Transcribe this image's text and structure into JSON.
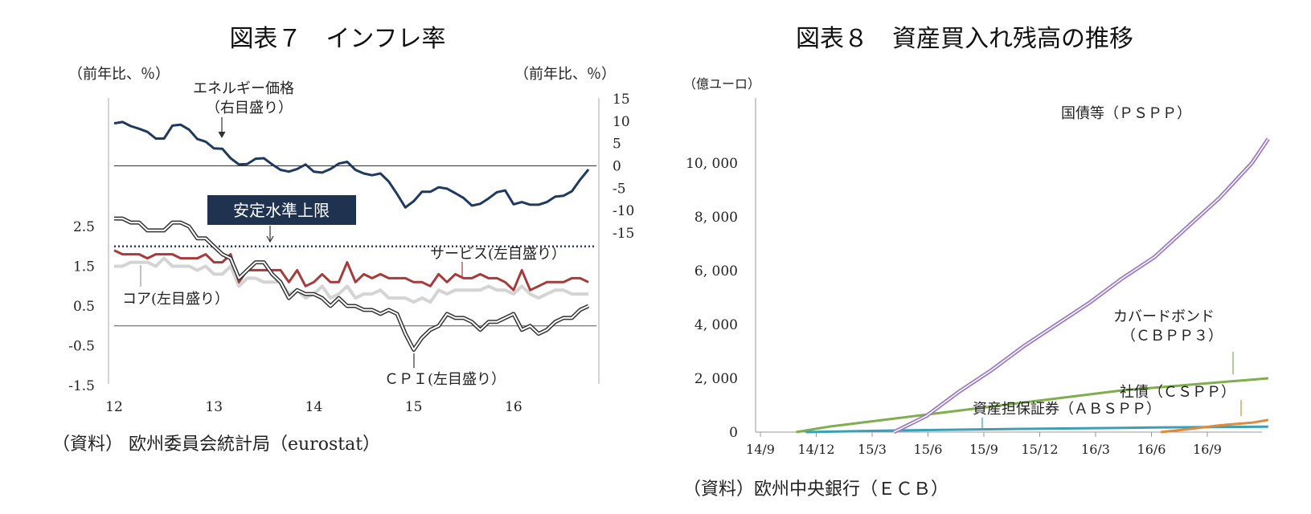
{
  "chart_data": [
    {
      "type": "line",
      "title": "図表７　インフレ率",
      "unit_left": "（前年比、％）",
      "unit_right": "（前年比、％）",
      "source": "（資料） 欧州委員会統計局（eurostat）",
      "x_labels": [
        "12",
        "13",
        "14",
        "15",
        "16"
      ],
      "x_range": [
        2012.0,
        2016.83
      ],
      "y_left_ticks": [
        "2.5",
        "1.5",
        "0.5",
        "-0.5",
        "-1.5"
      ],
      "y_left_range": [
        -1.5,
        3.5
      ],
      "y_right_ticks": [
        "15",
        "10",
        "5",
        "0",
        "-5",
        "-10",
        "-15"
      ],
      "y_right_range": [
        -15,
        15
      ],
      "stability_label": "安定水準上限",
      "stability_value": 2.0,
      "annotations": {
        "energy": "エネルギー価格",
        "energy_sub": "（右目盛り）",
        "services": "サービス(左目盛り）",
        "core": "コア(左目盛り）",
        "cpi": "ＣＰＩ(左目盛り）"
      },
      "colors": {
        "energy": "#1f3a5f",
        "services": "#a83a3a",
        "core": "#d4d4d4",
        "cpi": "#333333",
        "stability": "#2b3a67"
      },
      "series": [
        {
          "key": "energy",
          "axis": "right",
          "x_start": 2012.0,
          "values": [
            9.5,
            9.8,
            8.9,
            8.3,
            7.6,
            6.1,
            6.1,
            9,
            9.2,
            8.1,
            6,
            5.4,
            3.9,
            3.8,
            1.7,
            0.3,
            0.4,
            1.6,
            1.7,
            0.3,
            -0.9,
            -1.3,
            -0.7,
            0.3,
            -1.3,
            -1.5,
            -0.7,
            0.5,
            0.9,
            -0.9,
            -1.7,
            -2.1,
            -1.7,
            -3.5,
            -6.3,
            -9.3,
            -7.9,
            -5.8,
            -5.8,
            -4.8,
            -5.1,
            -6.1,
            -7.2,
            -8.9,
            -8.5,
            -7.3,
            -5.9,
            -5.5,
            -8.6,
            -8.1,
            -8.7,
            -8.7,
            -8.1,
            -6.9,
            -6.7,
            -5.7,
            -3.1,
            -0.8
          ]
        },
        {
          "key": "services",
          "axis": "left",
          "x_start": 2012.0,
          "values": [
            1.9,
            1.8,
            1.8,
            1.8,
            1.7,
            1.8,
            1.8,
            1.8,
            1.7,
            1.7,
            1.7,
            1.8,
            1.6,
            1.6,
            1.8,
            1.1,
            1.4,
            1.4,
            1.4,
            1.4,
            1.4,
            1.1,
            1.4,
            1.0,
            1.1,
            1.3,
            1.1,
            1.1,
            1.6,
            1.1,
            1.3,
            1.2,
            1.3,
            1.2,
            1.2,
            1.2,
            1.1,
            1.1,
            1.0,
            1.3,
            1.1,
            1.3,
            1.2,
            1.2,
            1.3,
            1.2,
            1.2,
            1.1,
            0.9,
            1.4,
            0.9,
            1.0,
            1.1,
            1.1,
            1.1,
            1.2,
            1.2,
            1.1
          ]
        },
        {
          "key": "core",
          "axis": "left",
          "x_start": 2012.0,
          "values": [
            1.5,
            1.5,
            1.6,
            1.6,
            1.6,
            1.5,
            1.7,
            1.5,
            1.5,
            1.5,
            1.4,
            1.5,
            1.3,
            1.3,
            1.5,
            1.0,
            1.2,
            1.2,
            1.1,
            1.1,
            1.1,
            0.8,
            0.9,
            0.7,
            0.8,
            1.0,
            0.7,
            0.8,
            1.0,
            0.7,
            0.8,
            0.8,
            0.9,
            0.7,
            0.7,
            0.7,
            0.6,
            0.7,
            0.6,
            0.9,
            0.8,
            0.9,
            0.9,
            0.9,
            0.9,
            1.0,
            0.9,
            0.9,
            0.8,
            1.0,
            0.8,
            0.7,
            0.8,
            0.9,
            0.9,
            0.8,
            0.8,
            0.8
          ]
        },
        {
          "key": "cpi",
          "axis": "left",
          "x_start": 2012.0,
          "values": [
            2.7,
            2.7,
            2.6,
            2.6,
            2.4,
            2.4,
            2.4,
            2.6,
            2.6,
            2.5,
            2.2,
            2.2,
            2.0,
            1.8,
            1.7,
            1.2,
            1.4,
            1.6,
            1.6,
            1.3,
            1.1,
            0.7,
            0.9,
            0.8,
            0.8,
            0.7,
            0.5,
            0.7,
            0.5,
            0.5,
            0.4,
            0.4,
            0.3,
            0.4,
            0.3,
            -0.2,
            -0.6,
            -0.3,
            -0.1,
            0.0,
            0.3,
            0.2,
            0.2,
            0.1,
            -0.1,
            0.1,
            0.1,
            0.2,
            0.3,
            -0.1,
            0.0,
            -0.2,
            -0.1,
            0.1,
            0.2,
            0.2,
            0.4,
            0.5
          ]
        }
      ]
    },
    {
      "type": "line",
      "title": "図表８　資産買入れ残高の推移",
      "unit": "（億ユーロ）",
      "source": "（資料）欧州中央銀行（ＥＣＢ）",
      "x_labels": [
        "14/9",
        "14/12",
        "15/3",
        "15/6",
        "15/9",
        "15/12",
        "16/3",
        "16/6",
        "16/9"
      ],
      "x_range": [
        0,
        15.5
      ],
      "y_ticks": [
        "10, 000",
        "8, 000",
        "6, 000",
        "4, 000",
        "2, 000",
        "0"
      ],
      "y_range": [
        0,
        12000
      ],
      "colors": {
        "pspp": "#9b7bc7",
        "cbpp3": "#7fae4d",
        "abspp": "#3a9fb8",
        "cspp": "#e08a3c"
      },
      "series": [
        {
          "key": "pspp",
          "name": "国債等（ＰＳＰＰ）",
          "x": [
            4,
            5,
            6,
            7,
            8,
            9,
            10,
            11,
            12,
            13,
            14,
            15,
            15.5
          ],
          "values": [
            0,
            600,
            1500,
            2300,
            3200,
            4000,
            4800,
            5700,
            6500,
            7600,
            8700,
            10000,
            10900
          ]
        },
        {
          "key": "cbpp3",
          "name": "カバードボンド",
          "name2": "（ＣＢＰＰ３）",
          "x": [
            1,
            2,
            3,
            4,
            5,
            6,
            7,
            8,
            9,
            10,
            11,
            12,
            13,
            14,
            15,
            15.5
          ],
          "values": [
            0,
            200,
            350,
            500,
            650,
            800,
            950,
            1100,
            1250,
            1400,
            1550,
            1650,
            1750,
            1850,
            1950,
            2000
          ]
        },
        {
          "key": "abspp",
          "name": "資産担保証券（ＡＢＳＰＰ）",
          "x": [
            1.3,
            4,
            8,
            12,
            15.5
          ],
          "values": [
            0,
            60,
            120,
            170,
            200
          ]
        },
        {
          "key": "cspp",
          "name": "社債（ＣＳＰＰ）",
          "x": [
            12.2,
            13,
            14,
            15,
            15.5
          ],
          "values": [
            0,
            100,
            250,
            350,
            450
          ]
        }
      ]
    }
  ]
}
